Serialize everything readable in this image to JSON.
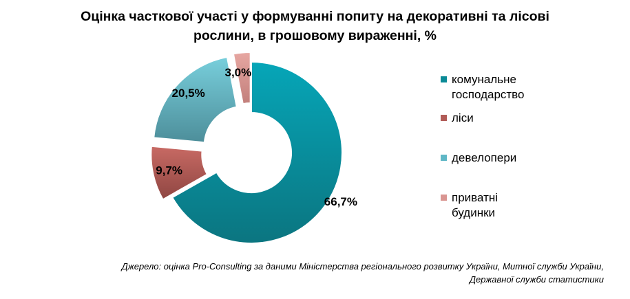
{
  "title": {
    "line1": "Оцінка часткової участі у формуванні попиту на декоративні та лісові",
    "line2": "рослини, в грошовому вираженні, %"
  },
  "chart_data": {
    "type": "pie",
    "donut": true,
    "categories": [
      "комунальне господарство",
      "ліси",
      "девелопери",
      "приватні будинки"
    ],
    "values": [
      66.7,
      9.7,
      20.5,
      3.0
    ],
    "data_labels": [
      "66,7%",
      "9,7%",
      "20,5%",
      "3,0%"
    ],
    "colors": [
      "#0a8a96",
      "#b15b57",
      "#5fb7c6",
      "#d99591"
    ],
    "legend_position": "right",
    "exploded": true,
    "start_angle_deg": 0,
    "direction": "clockwise"
  },
  "legend": {
    "items": [
      {
        "line1": "комунальне",
        "line2": "господарство"
      },
      {
        "line1": "ліси",
        "line2": ""
      },
      {
        "line1": "девелопери",
        "line2": ""
      },
      {
        "line1": "приватні",
        "line2": "будинки"
      }
    ]
  },
  "source": {
    "line1": "Джерело: оцінка Pro-Consulting за даними Міністерства регіонального розвитку України, Митної служби України,",
    "line2": "Державної служби статистики"
  }
}
